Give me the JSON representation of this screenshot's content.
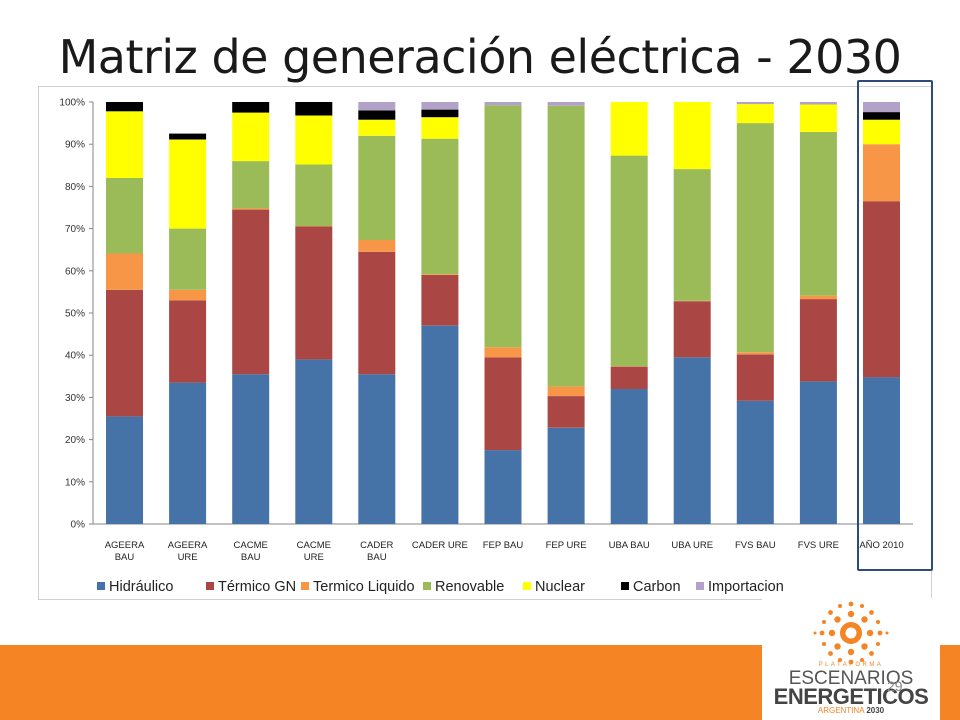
{
  "slide": {
    "title": "Matriz de generación eléctrica - 2030",
    "page_number": "29"
  },
  "logo": {
    "tagline": "PLATAFORMA",
    "line1": "ESCENARIOS",
    "line2": "ENERGETICOS",
    "line3a": "ARGENTINA",
    "line3b": "2030",
    "colors": {
      "sun": "#f58424",
      "text": "#444444"
    }
  },
  "colors": {
    "footer": "#f58424",
    "highlight": "#2e4a7d"
  },
  "chart_data": {
    "type": "bar",
    "stacked": true,
    "categories": [
      [
        "AGEERA",
        "BAU"
      ],
      [
        "AGEERA",
        "URE"
      ],
      [
        "CACME",
        "BAU"
      ],
      [
        "CACME",
        "URE"
      ],
      [
        "CADER",
        "BAU"
      ],
      [
        "CADER URE"
      ],
      [
        "FEP BAU"
      ],
      [
        "FEP URE"
      ],
      [
        "UBA BAU"
      ],
      [
        "UBA URE"
      ],
      [
        "FVS BAU"
      ],
      [
        "FVS URE"
      ],
      [
        "AÑO 2010"
      ]
    ],
    "y_ticks": [
      "0%",
      "10%",
      "20%",
      "30%",
      "40%",
      "50%",
      "60%",
      "70%",
      "80%",
      "90%",
      "100%"
    ],
    "ylim": [
      0,
      100
    ],
    "grid": false,
    "legend_position": "bottom",
    "series": [
      {
        "name": "Hidráulico",
        "color": "#4572a7",
        "values": [
          25.5,
          33.5,
          35.5,
          39,
          35.5,
          47,
          17.5,
          22.8,
          32,
          39.5,
          29.2,
          33.8,
          34.8
        ]
      },
      {
        "name": "Térmico GN",
        "color": "#aa4643",
        "values": [
          30,
          19.5,
          39,
          31.5,
          29,
          12,
          22,
          7.5,
          5.3,
          13.3,
          11,
          19.5,
          41.7
        ]
      },
      {
        "name": "Termico Liquido",
        "color": "#f79646",
        "values": [
          8.6,
          2.5,
          0.3,
          0.1,
          2.8,
          0.2,
          2.4,
          2.3,
          0.1,
          0.1,
          0.5,
          0.8,
          13.5
        ]
      },
      {
        "name": "Renovable",
        "color": "#9bbb59",
        "values": [
          17.9,
          14.5,
          11.2,
          14.6,
          24.7,
          32.1,
          57.3,
          66.5,
          49.9,
          31.2,
          54.3,
          38.8,
          0
        ]
      },
      {
        "name": "Nuclear",
        "color": "#ffff00",
        "values": [
          15.8,
          21.1,
          11.5,
          11.6,
          3.8,
          5.1,
          0,
          0,
          12.7,
          15.9,
          4.5,
          6.5,
          5.8
        ]
      },
      {
        "name": "Carbon",
        "color": "#000000",
        "values": [
          2.2,
          1.4,
          2.5,
          3.2,
          2.2,
          1.8,
          0,
          0,
          0,
          0,
          0,
          0,
          1.8
        ]
      },
      {
        "name": "Importacion",
        "color": "#b3a2c7",
        "values": [
          0,
          0,
          0,
          0,
          2,
          1.8,
          0.8,
          0.9,
          0,
          0,
          0.5,
          0.6,
          2.4
        ]
      }
    ],
    "highlighted_category": "AÑO 2010"
  }
}
